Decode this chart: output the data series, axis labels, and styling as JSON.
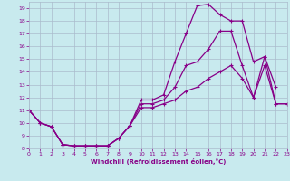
{
  "xlabel": "Windchill (Refroidissement éolien,°C)",
  "bg_color": "#c8eaee",
  "line_color": "#880088",
  "grid_color": "#aabbcc",
  "xlim": [
    0,
    23
  ],
  "ylim": [
    8,
    19.5
  ],
  "xticks": [
    0,
    1,
    2,
    3,
    4,
    5,
    6,
    7,
    8,
    9,
    10,
    11,
    12,
    13,
    14,
    15,
    16,
    17,
    18,
    19,
    20,
    21,
    22,
    23
  ],
  "yticks": [
    8,
    9,
    10,
    11,
    12,
    13,
    14,
    15,
    16,
    17,
    18,
    19
  ],
  "series": [
    {
      "x": [
        0,
        1,
        2,
        3,
        4,
        5,
        6,
        7,
        8,
        9,
        10,
        11,
        12,
        13,
        14,
        15,
        16,
        17,
        18,
        19,
        20,
        21,
        22
      ],
      "y": [
        11.0,
        10.0,
        9.7,
        8.3,
        8.2,
        8.2,
        8.2,
        8.2,
        8.8,
        9.8,
        11.8,
        11.8,
        12.2,
        14.8,
        17.0,
        19.2,
        19.3,
        18.5,
        18.0,
        18.0,
        14.8,
        15.2,
        12.8
      ]
    },
    {
      "x": [
        0,
        1,
        2,
        3,
        4,
        5,
        6,
        7,
        8,
        9,
        10,
        11,
        12,
        13,
        14,
        15,
        16,
        17,
        18,
        19,
        20,
        21,
        22,
        23
      ],
      "y": [
        11.0,
        10.0,
        9.7,
        8.3,
        8.2,
        8.2,
        8.2,
        8.2,
        8.8,
        9.8,
        11.5,
        11.5,
        11.8,
        12.8,
        14.5,
        14.8,
        15.8,
        17.2,
        17.2,
        14.5,
        12.0,
        15.2,
        11.5,
        11.5
      ]
    },
    {
      "x": [
        0,
        1,
        2,
        3,
        4,
        5,
        6,
        7,
        8,
        9,
        10,
        11,
        12,
        13,
        14,
        15,
        16,
        17,
        18,
        19,
        20,
        21,
        22,
        23
      ],
      "y": [
        11.0,
        10.0,
        9.7,
        8.3,
        8.2,
        8.2,
        8.2,
        8.2,
        8.8,
        9.8,
        11.2,
        11.2,
        11.5,
        11.8,
        12.5,
        12.8,
        13.5,
        14.0,
        14.5,
        13.5,
        12.0,
        14.5,
        11.5,
        11.5
      ]
    }
  ]
}
